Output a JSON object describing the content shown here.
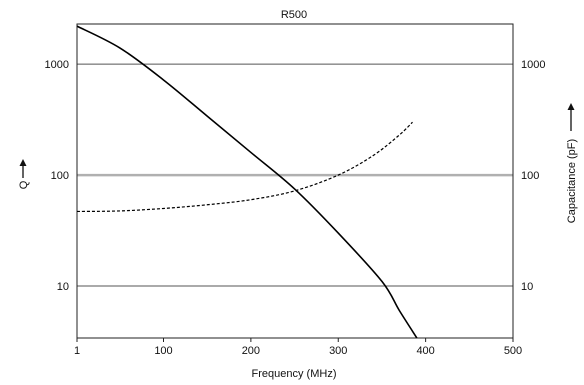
{
  "chart_data": {
    "type": "line",
    "title": "R500",
    "xlabel": "Frequency (MHz)",
    "ylabel_left": "Q",
    "ylabel_right": "Capacitance (pF)",
    "x_ticks": [
      {
        "value": 1,
        "label": "1"
      },
      {
        "value": 100,
        "label": "100"
      },
      {
        "value": 200,
        "label": "200"
      },
      {
        "value": 300,
        "label": "300"
      },
      {
        "value": 400,
        "label": "400"
      },
      {
        "value": 500,
        "label": "500"
      }
    ],
    "y_ticks": [
      {
        "value": 10,
        "label": "10"
      },
      {
        "value": 100,
        "label": "100"
      },
      {
        "value": 1000,
        "label": "1000"
      }
    ],
    "xlim": [
      1,
      500
    ],
    "ylim": [
      3.4,
      2300
    ],
    "yscale": "log",
    "grid": "horizontal at 10, 100, 1000",
    "series": [
      {
        "style": "solid",
        "color": "#000000",
        "x": [
          1,
          50,
          100,
          150,
          200,
          250,
          300,
          350,
          370,
          390
        ],
        "y": [
          2200,
          1400,
          720,
          340,
          160,
          75,
          30,
          11,
          6,
          3.4
        ]
      },
      {
        "style": "dashed",
        "color": "#000000",
        "x": [
          1,
          50,
          100,
          150,
          200,
          250,
          300,
          340,
          370,
          385
        ],
        "y": [
          47,
          47.5,
          50,
          54,
          60,
          72,
          100,
          150,
          230,
          300
        ]
      }
    ],
    "colors": {
      "gridline": "#555555",
      "gridline_highlight": "#b0b0b0",
      "frame": "#222222"
    }
  }
}
